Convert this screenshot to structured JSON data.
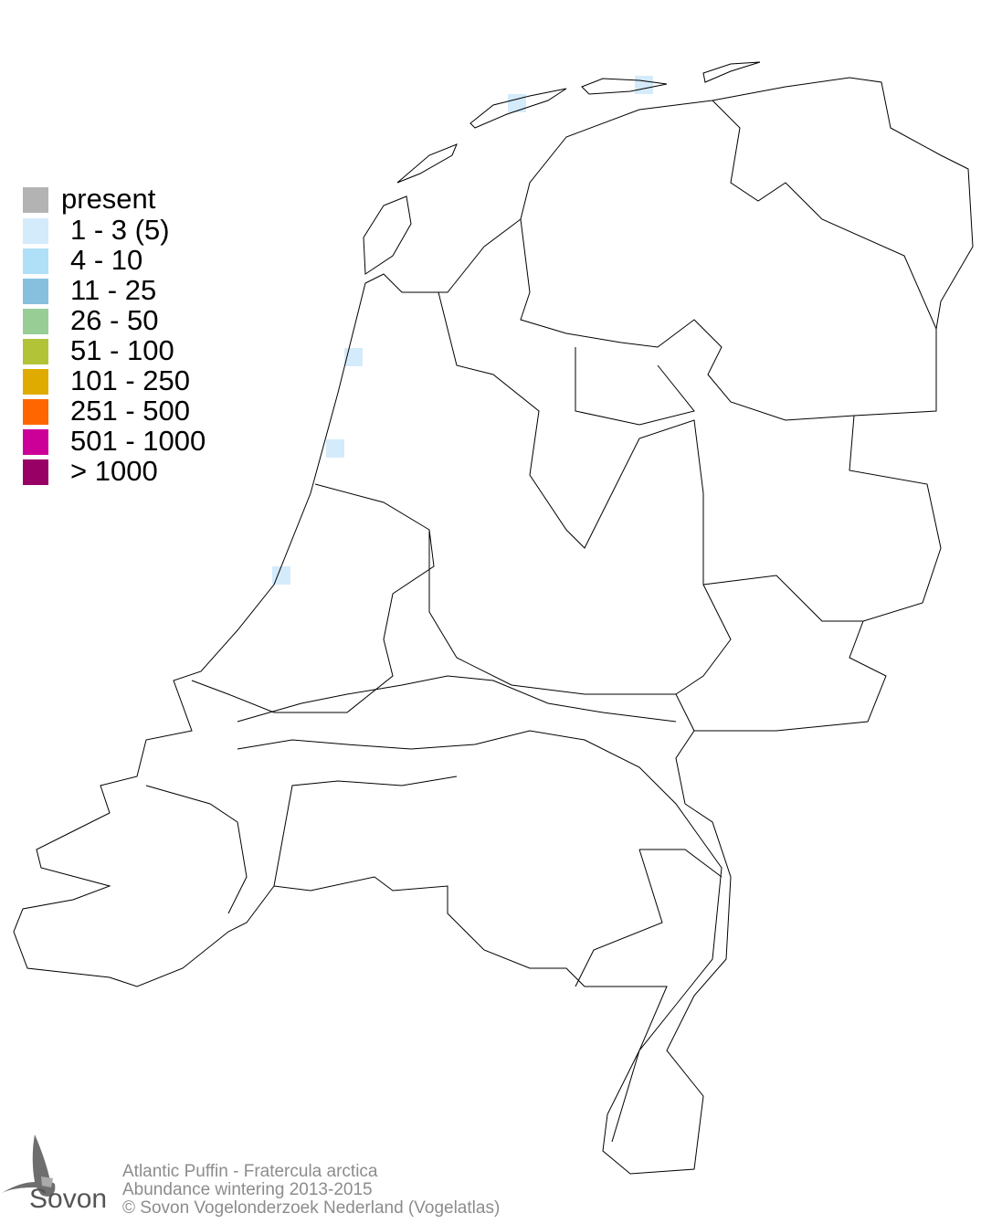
{
  "legend": {
    "items": [
      {
        "label": "present",
        "color": "#b3b3b3"
      },
      {
        "label": "1 - 3 (5)",
        "color": "#d4ebfb"
      },
      {
        "label": "4 - 10",
        "color": "#b0e0f8"
      },
      {
        "label": "11 - 25",
        "color": "#86c0de"
      },
      {
        "label": "26 - 50",
        "color": "#98cd96"
      },
      {
        "label": "51 - 100",
        "color": "#b2c337"
      },
      {
        "label": "101 - 250",
        "color": "#e0ab00"
      },
      {
        "label": "251 - 500",
        "color": "#ff6600"
      },
      {
        "label": "501 - 1000",
        "color": "#cc0099"
      },
      {
        "label": "> 1000",
        "color": "#990066"
      }
    ]
  },
  "map": {
    "cells_category": "1 - 3 (5)",
    "cell_color": "#d4ebfb",
    "cell_count": 5
  },
  "caption": {
    "species": "Atlantic Puffin - Fratercula arctica",
    "subtitle": "Abundance wintering 2013-2015",
    "copyright": "© Sovon Vogelonderzoek Nederland (Vogelatlas)"
  },
  "logo": {
    "text": "Sovon"
  }
}
